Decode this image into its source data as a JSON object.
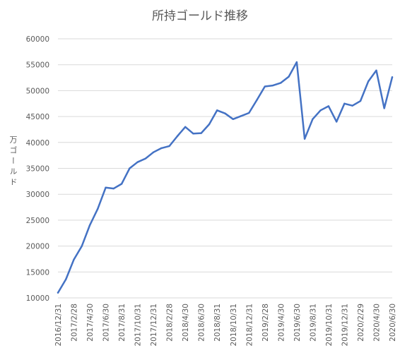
{
  "chart_data": {
    "type": "line",
    "title": "所持ゴールド推移",
    "xlabel": "",
    "ylabel": "万ゴールド",
    "ylim": [
      10000,
      60000
    ],
    "yticks": [
      10000,
      15000,
      20000,
      25000,
      30000,
      35000,
      40000,
      45000,
      50000,
      55000,
      60000
    ],
    "grid": true,
    "legend": "none",
    "line_color": "#4472C4",
    "x_tick_labels": [
      "2016/12/31",
      "2017/2/28",
      "2017/4/30",
      "2017/6/30",
      "2017/8/31",
      "2017/10/31",
      "2017/12/31",
      "2018/2/28",
      "2018/4/30",
      "2018/6/30",
      "2018/8/31",
      "2018/10/31",
      "2018/12/31",
      "2019/2/28",
      "2019/4/30",
      "2019/6/30",
      "2019/8/31",
      "2019/10/31",
      "2019/12/31",
      "2020/2/29",
      "2020/4/30",
      "2020/6/30"
    ],
    "series": [
      {
        "values": [
          11000,
          13600,
          17400,
          20000,
          24000,
          27200,
          31300,
          31100,
          32000,
          35000,
          36200,
          36900,
          38100,
          38900,
          39300,
          41200,
          43000,
          41700,
          41800,
          43500,
          46200,
          45600,
          44500,
          45100,
          45700,
          48200,
          50800,
          51000,
          51500,
          52700,
          55500,
          40700,
          44500,
          46200,
          47000,
          44000,
          47500,
          47100,
          48000,
          51800,
          53900,
          46600,
          52600
        ]
      }
    ]
  }
}
